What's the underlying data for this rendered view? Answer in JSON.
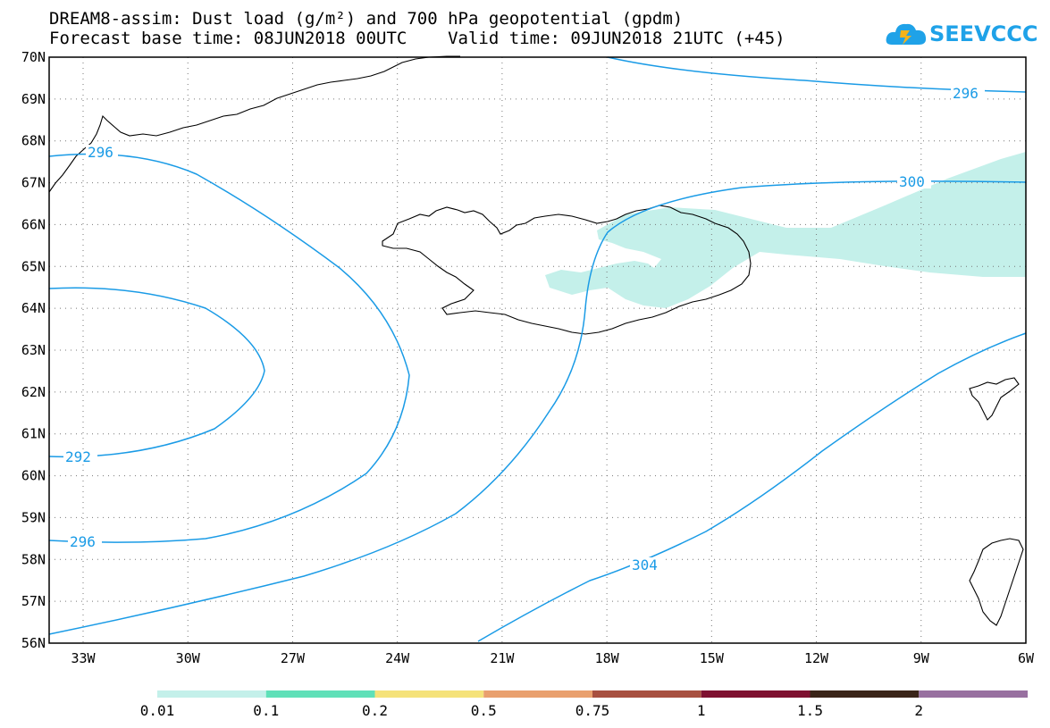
{
  "header": {
    "title_line1": "DREAM8-assim: Dust load (g/m²) and 700 hPa geopotential (gpdm)",
    "title_line2": "Forecast base time: 08JUN2018 00UTC    Valid time: 09JUN2018 21UTC (+45)"
  },
  "logo": {
    "text": "SEEVCCC",
    "icon": "cloud-icon",
    "color": "#1fa2e8"
  },
  "map": {
    "lat_labels": [
      "70N",
      "69N",
      "68N",
      "67N",
      "66N",
      "65N",
      "64N",
      "63N",
      "62N",
      "61N",
      "60N",
      "59N",
      "58N",
      "57N",
      "56N"
    ],
    "lon_labels": [
      "33W",
      "30W",
      "27W",
      "24W",
      "21W",
      "18W",
      "15W",
      "12W",
      "9W",
      "6W"
    ],
    "contour_color": "#1a9be6",
    "dust_color": "#c4f0ea",
    "contour_labels": [
      "296",
      "296",
      "300",
      "292",
      "296",
      "304"
    ]
  },
  "colorbar": {
    "colors": [
      "#c4f0ea",
      "#5fe0b8",
      "#f5e27a",
      "#e9a06e",
      "#a85040",
      "#7e1030",
      "#3a2418",
      "#9870a0"
    ],
    "labels": [
      "0.01",
      "0.1",
      "0.2",
      "0.5",
      "0.75",
      "1",
      "1.5",
      "2"
    ]
  }
}
